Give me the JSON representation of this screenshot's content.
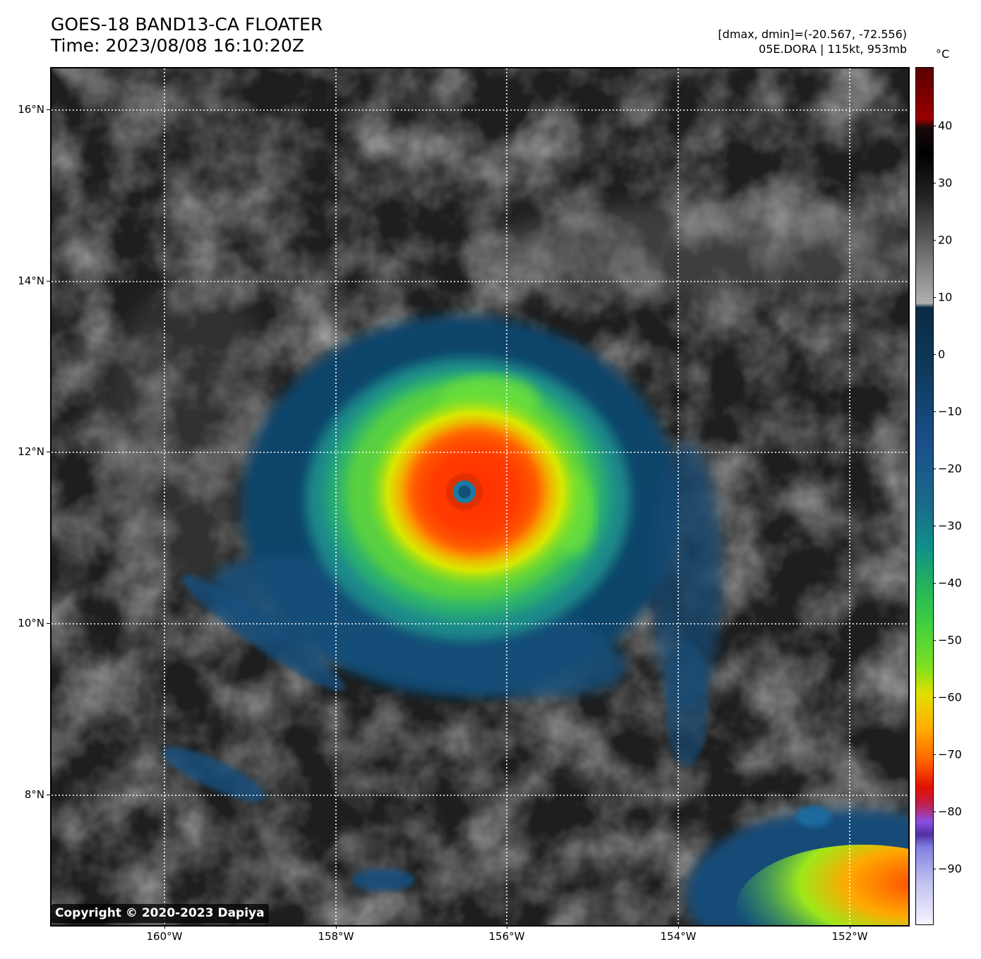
{
  "header": {
    "title_line1": "GOES-18 BAND13-CA FLOATER",
    "title_line2": "Time: 2023/08/08 16:10:20Z",
    "stats_line1": "[dmax, dmin]=(-20.567, -72.556)",
    "stats_line2": "05E.DORA | 115kt, 953mb"
  },
  "map": {
    "latitude_labels": [
      "16°N",
      "14°N",
      "12°N",
      "10°N",
      "8°N"
    ],
    "longitude_labels": [
      "160°W",
      "158°W",
      "156°W",
      "154°W",
      "152°W"
    ],
    "gridlines": "dotted white",
    "storm_center": {
      "lat": 11.5,
      "lon": -156.5
    },
    "copyright": "Copyright © 2020-2023 Dapiya"
  },
  "colorbar": {
    "unit": "°C",
    "labels": [
      "40",
      "30",
      "20",
      "10",
      "0",
      "−10",
      "−20",
      "−30",
      "−40",
      "−50",
      "−60",
      "−70",
      "−80",
      "−90"
    ]
  }
}
